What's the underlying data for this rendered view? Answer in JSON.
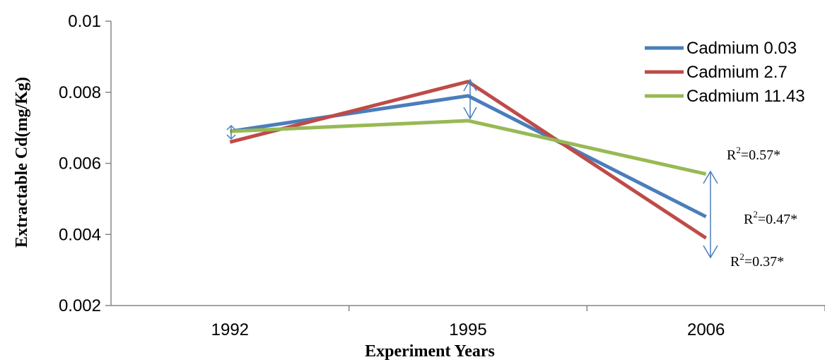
{
  "chart_data": {
    "type": "line",
    "categories": [
      "1992",
      "1995",
      "2006"
    ],
    "series": [
      {
        "name": "Cadmium 0.03",
        "values": [
          0.0069,
          0.0079,
          0.0045
        ],
        "color": "#4a7ebb"
      },
      {
        "name": "Cadmium 2.7",
        "values": [
          0.0066,
          0.0083,
          0.0039
        ],
        "color": "#be4b48"
      },
      {
        "name": "Cadmium 11.43",
        "values": [
          0.0069,
          0.0072,
          0.0057
        ],
        "color": "#98b954"
      }
    ],
    "xlabel": "Experiment Years",
    "ylabel": "Extractable Cd(mg/Kg)",
    "ylim": [
      0.002,
      0.01
    ],
    "yticks": [
      "0.002",
      "0.004",
      "0.006",
      "0.008",
      "0.01"
    ],
    "legend_position": "top-right",
    "grid": false,
    "annotations": [
      {
        "base": "R",
        "sup": "2",
        "rest": "=0.57*"
      },
      {
        "base": "R",
        "sup": "2",
        "rest": "=0.47*"
      },
      {
        "base": "R",
        "sup": "2",
        "rest": "=0.37*"
      }
    ]
  }
}
